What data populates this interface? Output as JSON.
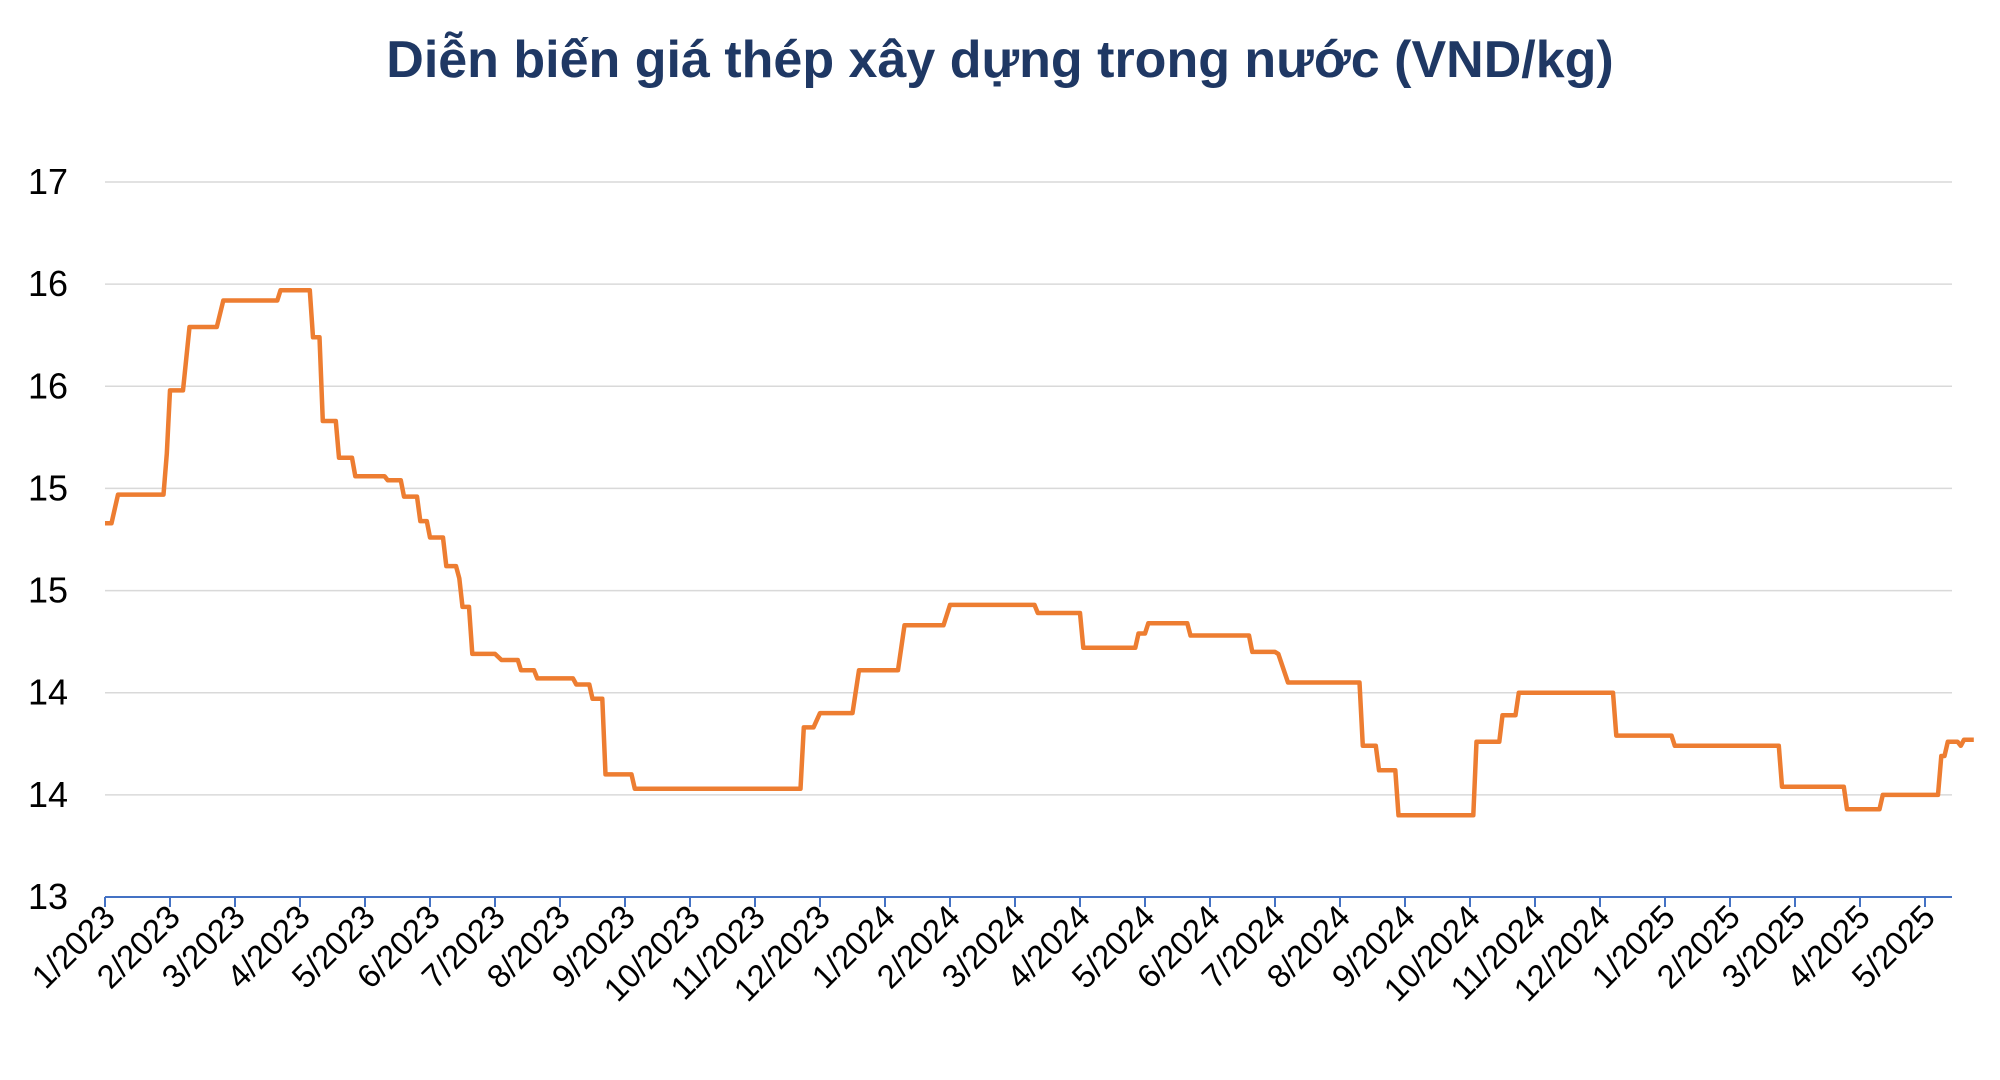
{
  "chart_data": {
    "type": "line",
    "title": "Diễn biến giá thép xây dựng trong nước (VND/kg)",
    "xlabel": "",
    "ylabel": "",
    "y_tick_labels": [
      "13",
      "14",
      "14",
      "15",
      "15",
      "16",
      "16",
      "17"
    ],
    "x_tick_labels": [
      "1/2023",
      "2/2023",
      "3/2023",
      "4/2023",
      "5/2023",
      "6/2023",
      "7/2023",
      "8/2023",
      "9/2023",
      "10/2023",
      "11/2023",
      "12/2023",
      "1/2024",
      "2/2024",
      "3/2024",
      "4/2024",
      "5/2024",
      "6/2024",
      "7/2024",
      "8/2024",
      "9/2024",
      "10/2024",
      "11/2024",
      "12/2024",
      "1/2025",
      "2/2025",
      "3/2025",
      "4/2025",
      "5/2025"
    ],
    "grid": true,
    "legend": "none",
    "colors": {
      "line": "#ed7d31",
      "grid": "#d9d9d9",
      "axis": "#4472c4",
      "title": "#1f3864"
    },
    "series": [
      {
        "points": [
          [
            0,
            14.83
          ],
          [
            0.1,
            14.83
          ],
          [
            0.2,
            14.97
          ],
          [
            0.9,
            14.97
          ],
          [
            0.95,
            15.17
          ],
          [
            1.0,
            15.48
          ],
          [
            1.2,
            15.48
          ],
          [
            1.3,
            15.79
          ],
          [
            1.72,
            15.79
          ],
          [
            1.82,
            15.92
          ],
          [
            2.65,
            15.92
          ],
          [
            2.7,
            15.97
          ],
          [
            3.15,
            15.97
          ],
          [
            3.2,
            15.74
          ],
          [
            3.3,
            15.74
          ],
          [
            3.35,
            15.33
          ],
          [
            3.55,
            15.33
          ],
          [
            3.6,
            15.15
          ],
          [
            3.8,
            15.15
          ],
          [
            3.85,
            15.06
          ],
          [
            4.3,
            15.06
          ],
          [
            4.35,
            15.04
          ],
          [
            4.55,
            15.04
          ],
          [
            4.6,
            14.96
          ],
          [
            4.8,
            14.96
          ],
          [
            4.85,
            14.84
          ],
          [
            4.95,
            14.84
          ],
          [
            5.0,
            14.76
          ],
          [
            5.2,
            14.76
          ],
          [
            5.25,
            14.62
          ],
          [
            5.4,
            14.62
          ],
          [
            5.45,
            14.56
          ],
          [
            5.5,
            14.42
          ],
          [
            5.6,
            14.42
          ],
          [
            5.65,
            14.19
          ],
          [
            6.0,
            14.19
          ],
          [
            6.1,
            14.16
          ],
          [
            6.35,
            14.16
          ],
          [
            6.4,
            14.11
          ],
          [
            6.6,
            14.11
          ],
          [
            6.65,
            14.07
          ],
          [
            7.2,
            14.07
          ],
          [
            7.25,
            14.04
          ],
          [
            7.45,
            14.04
          ],
          [
            7.5,
            13.97
          ],
          [
            7.65,
            13.97
          ],
          [
            7.7,
            13.6
          ],
          [
            8.1,
            13.6
          ],
          [
            8.15,
            13.53
          ],
          [
            10.7,
            13.53
          ],
          [
            10.75,
            13.83
          ],
          [
            10.9,
            13.83
          ],
          [
            11.0,
            13.9
          ],
          [
            11.5,
            13.9
          ],
          [
            11.6,
            14.11
          ],
          [
            12.2,
            14.11
          ],
          [
            12.3,
            14.33
          ],
          [
            12.9,
            14.33
          ],
          [
            13.0,
            14.43
          ],
          [
            14.3,
            14.43
          ],
          [
            14.35,
            14.39
          ],
          [
            15.0,
            14.39
          ],
          [
            15.05,
            14.22
          ],
          [
            15.85,
            14.22
          ],
          [
            15.9,
            14.29
          ],
          [
            16.0,
            14.29
          ],
          [
            16.05,
            14.34
          ],
          [
            16.65,
            14.34
          ],
          [
            16.7,
            14.28
          ],
          [
            17.6,
            14.28
          ],
          [
            17.65,
            14.2
          ],
          [
            18.0,
            14.2
          ],
          [
            18.05,
            14.19
          ],
          [
            18.2,
            14.05
          ],
          [
            19.3,
            14.05
          ],
          [
            19.35,
            13.74
          ],
          [
            19.55,
            13.74
          ],
          [
            19.6,
            13.62
          ],
          [
            19.85,
            13.62
          ],
          [
            19.9,
            13.4
          ],
          [
            21.05,
            13.4
          ],
          [
            21.1,
            13.76
          ],
          [
            21.45,
            13.76
          ],
          [
            21.5,
            13.89
          ],
          [
            21.7,
            13.89
          ],
          [
            21.75,
            14.0
          ],
          [
            23.2,
            14.0
          ],
          [
            23.25,
            13.79
          ],
          [
            24.1,
            13.79
          ],
          [
            24.15,
            13.74
          ],
          [
            25.75,
            13.74
          ],
          [
            25.8,
            13.54
          ],
          [
            26.75,
            13.54
          ],
          [
            26.8,
            13.43
          ],
          [
            27.3,
            13.43
          ],
          [
            27.35,
            13.5
          ],
          [
            28.2,
            13.5
          ],
          [
            28.25,
            13.69
          ],
          [
            28.3,
            13.69
          ],
          [
            28.35,
            13.76
          ],
          [
            28.5,
            13.76
          ],
          [
            28.55,
            13.74
          ],
          [
            28.6,
            13.77
          ],
          [
            28.75,
            13.77
          ]
        ]
      }
    ]
  }
}
